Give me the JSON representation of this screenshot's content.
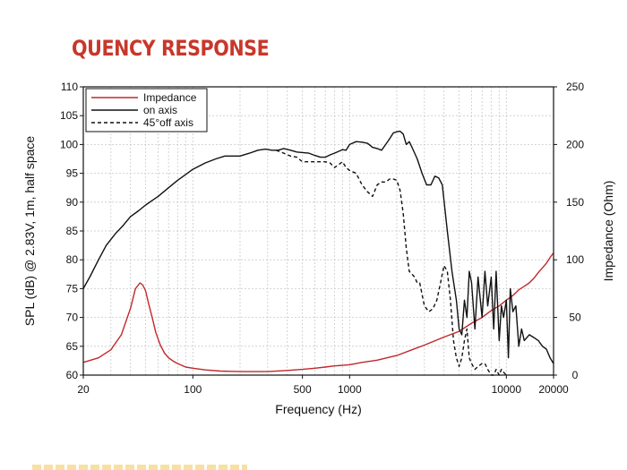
{
  "page": {
    "heading": "QUENCY RESPONSE"
  },
  "colors": {
    "heading": "#c8372b",
    "impedance": "#c0282b",
    "on_axis": "#111111",
    "off_axis": "#111111",
    "grid": "#c9c9c9"
  },
  "chart_data": {
    "type": "line",
    "title": "QUENCY RESPONSE",
    "xlabel": "Frequency (Hz)",
    "ylabel_left": "SPL (dB) @ 2.83V, 1m, half space",
    "ylabel_right": "Impedance (Ohm)",
    "x_scale": "log",
    "xlim": [
      20,
      20000
    ],
    "ylim_left": [
      60,
      110
    ],
    "ylim_right": [
      0,
      250
    ],
    "x_ticks": [
      {
        "value": 20,
        "label": "20"
      },
      {
        "value": 100,
        "label": "100"
      },
      {
        "value": 500,
        "label": "500"
      },
      {
        "value": 1000,
        "label": "1000"
      },
      {
        "value": 10000,
        "label": "10000"
      },
      {
        "value": 20000,
        "label": "20000"
      }
    ],
    "y_ticks_left": [
      "60",
      "65",
      "70",
      "75",
      "80",
      "85",
      "90",
      "95",
      "100",
      "105",
      "110"
    ],
    "y_ticks_right": [
      "0",
      "50",
      "100",
      "150",
      "200",
      "250"
    ],
    "legend": {
      "position": "top-left",
      "entries": [
        {
          "label": "Impedance",
          "style": "solid",
          "series": "impedance"
        },
        {
          "label": "on axis",
          "style": "solid",
          "series": "on_axis"
        },
        {
          "label": "45°off axis",
          "style": "dashed",
          "series": "off_axis"
        }
      ]
    },
    "series": [
      {
        "name": "on axis",
        "key": "on_axis",
        "axis": "left",
        "x": [
          20,
          22,
          25,
          28,
          32,
          36,
          40,
          45,
          50,
          55,
          60,
          70,
          80,
          90,
          100,
          120,
          140,
          160,
          180,
          200,
          230,
          260,
          290,
          320,
          350,
          380,
          420,
          460,
          500,
          550,
          600,
          650,
          700,
          750,
          800,
          850,
          900,
          950,
          1000,
          1100,
          1200,
          1300,
          1400,
          1500,
          1600,
          1700,
          1800,
          1900,
          2000,
          2100,
          2200,
          2300,
          2400,
          2500,
          2700,
          2900,
          3100,
          3300,
          3500,
          3700,
          3900,
          4200,
          4500,
          4800,
          5000,
          5200,
          5400,
          5600,
          5800,
          6000,
          6300,
          6600,
          7000,
          7300,
          7600,
          8000,
          8300,
          8600,
          9000,
          9300,
          9600,
          10000,
          10300,
          10600,
          11000,
          11500,
          12000,
          12500,
          13000,
          14000,
          15000,
          16000,
          17000,
          18000,
          19000,
          20000
        ],
        "y": [
          75,
          77,
          80,
          82.5,
          84.5,
          86,
          87.5,
          88.5,
          89.5,
          90.3,
          91,
          92.5,
          93.8,
          94.8,
          95.7,
          96.8,
          97.5,
          98,
          98,
          98,
          98.5,
          99,
          99.2,
          99,
          99,
          99.3,
          99,
          98.7,
          98.6,
          98.5,
          98.1,
          97.8,
          97.8,
          98.2,
          98.5,
          98.8,
          99.1,
          99,
          100,
          100.5,
          100.4,
          100.2,
          99.5,
          99.3,
          99,
          100,
          101,
          102,
          102.2,
          102.3,
          101.8,
          100,
          100.5,
          99.5,
          97.5,
          95,
          93,
          93,
          94.5,
          94.2,
          93,
          85,
          78,
          73,
          68,
          67,
          73,
          70,
          78,
          76,
          68,
          77,
          70,
          78,
          72,
          77,
          68,
          78,
          66,
          72,
          70,
          73,
          63,
          75,
          71,
          72,
          65,
          68,
          66,
          67,
          66.5,
          66,
          65,
          64.5,
          63,
          62
        ]
      },
      {
        "name": "45°off axis",
        "key": "off_axis",
        "axis": "left",
        "x": [
          340,
          380,
          420,
          460,
          500,
          550,
          600,
          650,
          700,
          750,
          800,
          850,
          900,
          950,
          1000,
          1100,
          1200,
          1300,
          1400,
          1500,
          1600,
          1700,
          1800,
          1900,
          2000,
          2100,
          2200,
          2300,
          2400,
          2500,
          2600,
          2700,
          2800,
          3000,
          3200,
          3400,
          3600,
          3800,
          4000,
          4200,
          4400,
          4600,
          4800,
          5000,
          5200,
          5400,
          5600,
          5800,
          6000,
          6300,
          6600,
          7000,
          7300,
          7600,
          8000,
          8300,
          8600,
          9000,
          9300,
          9600,
          10000
        ],
        "y": [
          99,
          98.5,
          98,
          97.8,
          97,
          97,
          97,
          97,
          97,
          96.8,
          96,
          96.5,
          97,
          96,
          95.5,
          95,
          93,
          91.8,
          91,
          93,
          93.5,
          93.5,
          94,
          94,
          93.8,
          92,
          88,
          82,
          78,
          77.5,
          77,
          76,
          76,
          72,
          71,
          71.5,
          73,
          76,
          79,
          78,
          73,
          66,
          63,
          61.5,
          63,
          66,
          68,
          63,
          62,
          61,
          61.5,
          62,
          62,
          61,
          60,
          60,
          61,
          60,
          61,
          60.5,
          60
        ]
      },
      {
        "name": "Impedance",
        "key": "impedance",
        "axis": "right",
        "x": [
          20,
          25,
          30,
          35,
          40,
          43,
          46,
          48,
          50,
          52,
          55,
          58,
          62,
          66,
          70,
          75,
          80,
          90,
          100,
          120,
          150,
          200,
          250,
          300,
          400,
          500,
          600,
          700,
          800,
          900,
          1000,
          1200,
          1500,
          2000,
          2500,
          3000,
          4000,
          5000,
          6000,
          7000,
          8000,
          9000,
          10000,
          11000,
          12000,
          13000,
          14000,
          15000,
          16000,
          17000,
          18000,
          19000,
          20000
        ],
        "y": [
          11,
          15,
          22,
          35,
          58,
          75,
          80,
          78,
          73,
          63,
          50,
          37,
          26,
          19,
          15,
          12,
          10,
          7,
          6,
          4.5,
          3.5,
          3,
          3,
          3,
          4,
          5,
          6,
          7,
          8,
          8.5,
          9,
          11,
          13,
          17,
          22,
          26,
          33,
          38,
          45,
          50,
          56,
          60,
          65,
          69,
          74,
          77,
          80,
          84,
          89,
          93,
          97,
          102,
          106
        ]
      }
    ]
  }
}
